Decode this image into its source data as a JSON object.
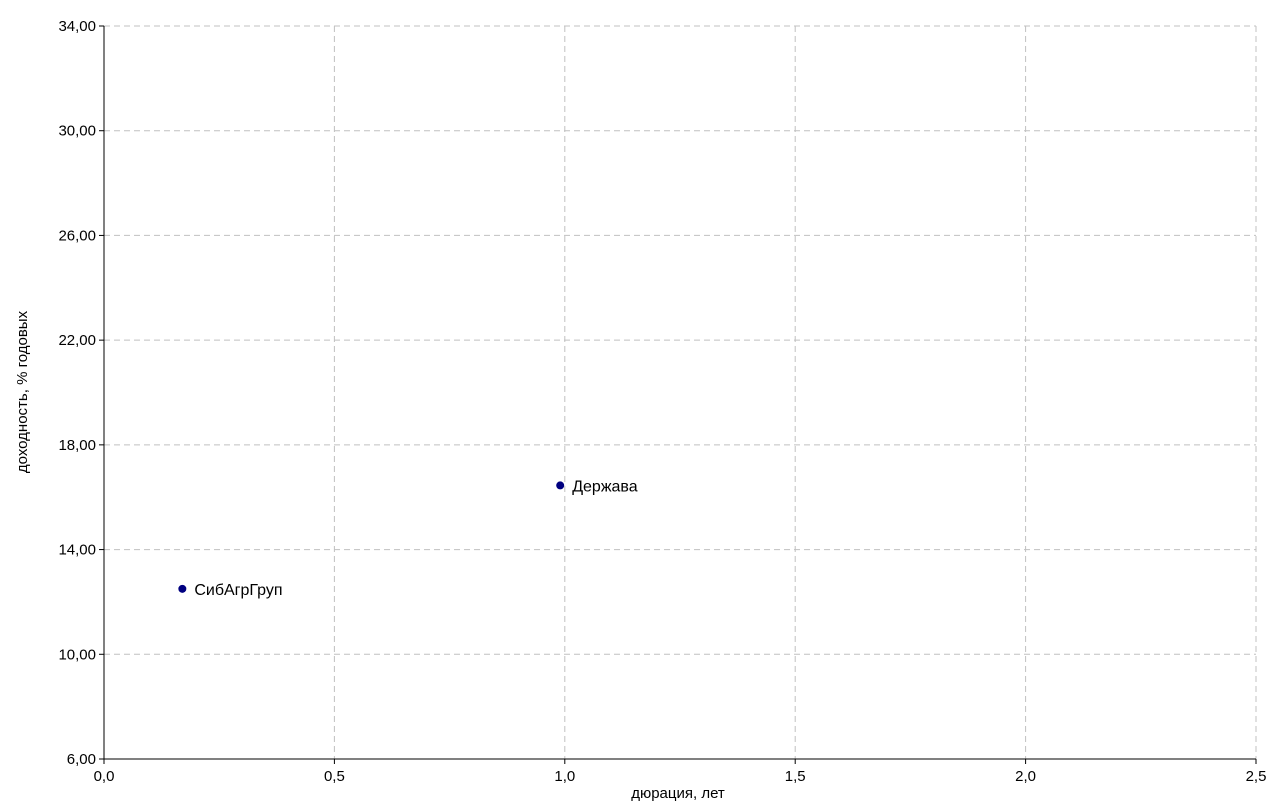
{
  "chart_data": {
    "type": "scatter",
    "title": "",
    "xlabel": "дюрация, лет",
    "ylabel": "доходность, % годовых",
    "xlim": [
      0,
      2.5
    ],
    "ylim": [
      6,
      34
    ],
    "x_ticks": [
      "0,0",
      "0,5",
      "1,0",
      "1,5",
      "2,0",
      "2,5"
    ],
    "y_ticks": [
      "6,00",
      "10,00",
      "14,00",
      "18,00",
      "22,00",
      "26,00",
      "30,00",
      "34,00"
    ],
    "grid": true,
    "point_color": "#000080",
    "points": [
      {
        "label": "СибАгрГруп",
        "x": 0.17,
        "y": 12.5
      },
      {
        "label": "Держава",
        "x": 0.99,
        "y": 16.45
      }
    ]
  }
}
